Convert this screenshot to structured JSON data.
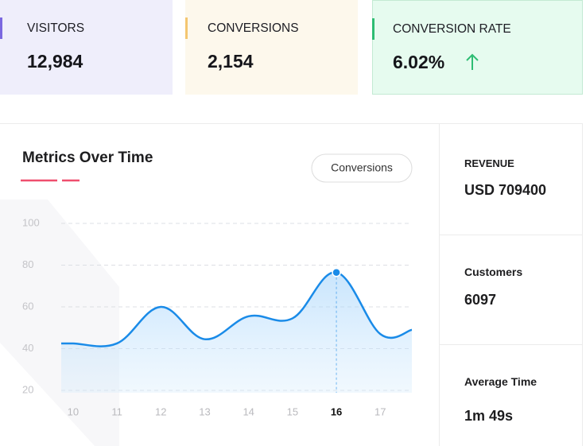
{
  "cards": [
    {
      "label": "VISITORS",
      "value": "12,984"
    },
    {
      "label": "CONVERSIONS",
      "value": "2,154"
    },
    {
      "label": "CONVERSION RATE",
      "value": "6.02%"
    }
  ],
  "side_stats": [
    {
      "label": "REVENUE",
      "value": "USD 709400"
    },
    {
      "label": "Customers",
      "value": "6097"
    },
    {
      "label": "Average Time",
      "value": "1m 49s"
    }
  ],
  "chart_data": {
    "type": "line",
    "title": "Metrics Over Time",
    "selector": "Conversions",
    "x": [
      9.73,
      10,
      11,
      12,
      13,
      14,
      15,
      16,
      17,
      17.72
    ],
    "values": [
      42.5,
      42.5,
      42.5,
      60,
      44.5,
      55.5,
      54.5,
      76.5,
      47,
      49
    ],
    "color": "#1a8be8",
    "xlim": [
      9.73,
      17.72
    ],
    "xticks": [
      10,
      11,
      12,
      13,
      14,
      15,
      16,
      17
    ],
    "ylim": [
      20,
      100
    ],
    "yticks": [
      20,
      40,
      60,
      80,
      100
    ],
    "grid": true,
    "highlight_x": 16
  }
}
